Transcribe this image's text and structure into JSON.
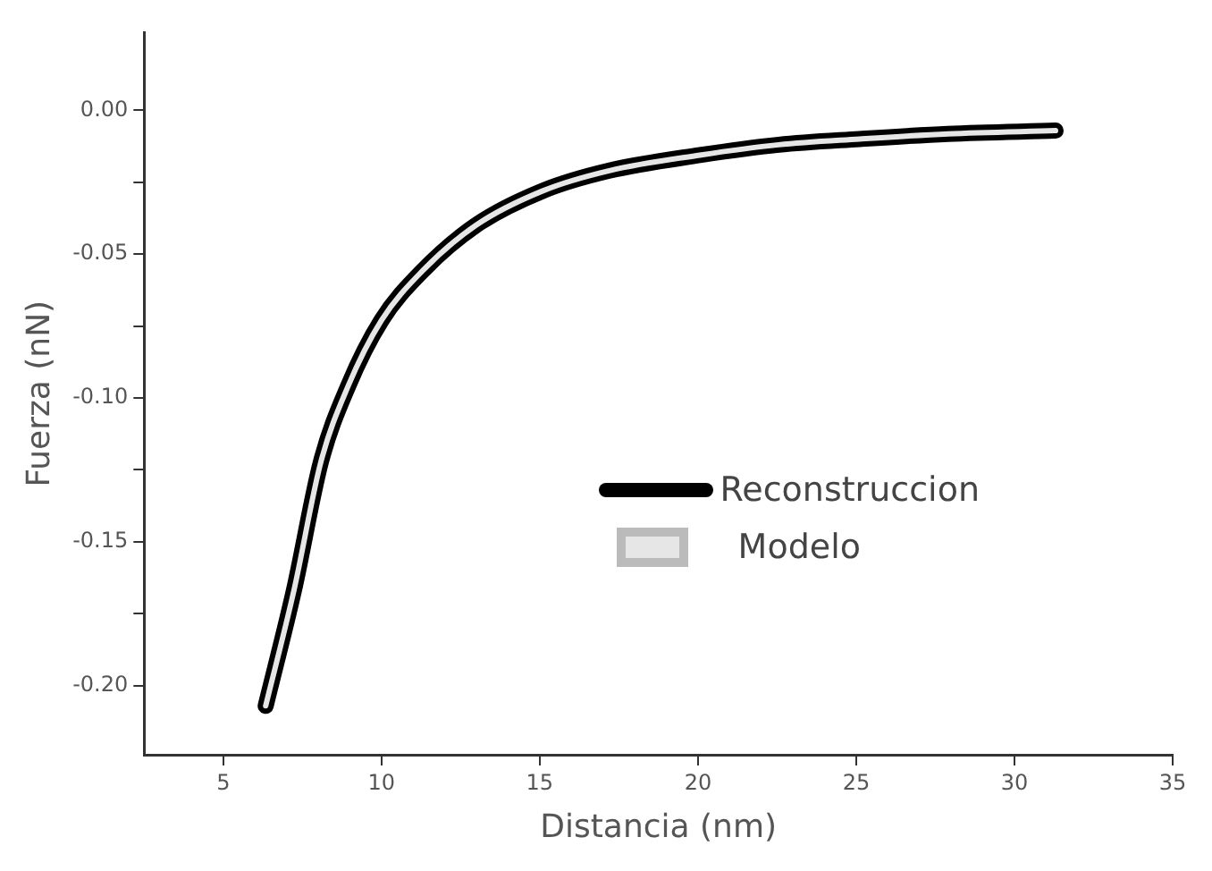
{
  "chart_data": {
    "type": "line",
    "xlabel": "Distancia (nm)",
    "ylabel": "Fuerza (nN)",
    "x": [
      6.34,
      7.23,
      8.09,
      8.94,
      10.0,
      11.28,
      12.98,
      15.1,
      17.2,
      20.06,
      22.55,
      25.1,
      27.9,
      31.3
    ],
    "series": [
      {
        "name": "Reconstruccion",
        "color": "#000000",
        "values": [
          -0.207,
          -0.167,
          -0.122,
          -0.096,
          -0.073,
          -0.056,
          -0.04,
          -0.028,
          -0.021,
          -0.0156,
          -0.012,
          -0.01,
          -0.0082,
          -0.0071
        ]
      },
      {
        "name": "Modelo",
        "color": "#e6e6e6",
        "values": [
          -0.207,
          -0.167,
          -0.122,
          -0.096,
          -0.073,
          -0.056,
          -0.04,
          -0.028,
          -0.021,
          -0.0156,
          -0.012,
          -0.01,
          -0.0082,
          -0.0071
        ]
      }
    ],
    "xlim": [
      2.5,
      35
    ],
    "xticks": [
      5,
      10,
      15,
      20,
      25,
      30,
      35
    ],
    "ylim": [
      -0.224,
      0.027
    ],
    "yticks": [
      {
        "value": 0,
        "label": "0.00"
      },
      {
        "value": -0.025,
        "label": null
      },
      {
        "value": -0.05,
        "label": "-0.05"
      },
      {
        "value": -0.075,
        "label": null
      },
      {
        "value": -0.1,
        "label": "-0.10"
      },
      {
        "value": -0.125,
        "label": null
      },
      {
        "value": -0.15,
        "label": "-0.15"
      },
      {
        "value": -0.175,
        "label": null
      },
      {
        "value": -0.2,
        "label": "-0.20"
      }
    ],
    "grid": false,
    "legend": "right",
    "marker": "none",
    "line_style": "solid"
  }
}
